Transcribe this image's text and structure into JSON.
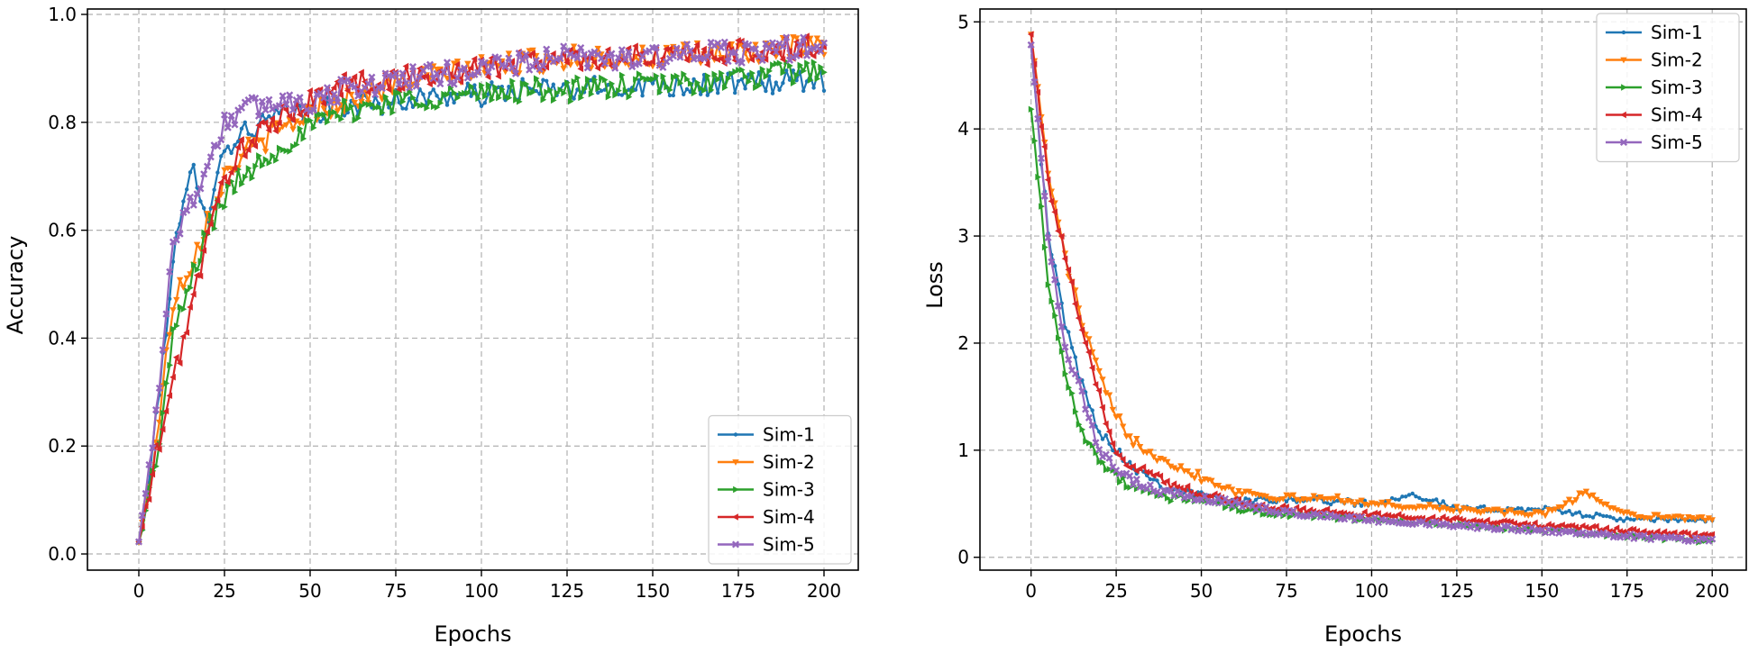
{
  "colors": {
    "Sim-1": "#1f77b4",
    "Sim-2": "#ff7f0e",
    "Sim-3": "#2ca02c",
    "Sim-4": "#d62728",
    "Sim-5": "#9467bd"
  },
  "chart_data": [
    {
      "id": "accuracy",
      "type": "line",
      "title": "",
      "xlabel": "Epochs",
      "ylabel": "Accuracy",
      "xlim": [
        -15,
        210
      ],
      "ylim": [
        -0.03,
        1.01
      ],
      "xticks": [
        0,
        25,
        50,
        75,
        100,
        125,
        150,
        175,
        200
      ],
      "yticks": [
        0.0,
        0.2,
        0.4,
        0.6,
        0.8,
        1.0
      ],
      "ytick_labels": [
        "0.0",
        "0.2",
        "0.4",
        "0.6",
        "0.8",
        "1.0"
      ],
      "grid": true,
      "legend_position": "lower-right",
      "legend": [
        "Sim-1",
        "Sim-2",
        "Sim-3",
        "Sim-4",
        "Sim-5"
      ],
      "series": [
        {
          "name": "Sim-1",
          "marker": "point",
          "x": [
            0,
            5,
            10,
            16,
            20,
            25,
            30,
            40,
            50,
            60,
            75,
            90,
            100,
            110,
            125,
            150,
            175,
            200
          ],
          "values": [
            0.02,
            0.24,
            0.55,
            0.72,
            0.63,
            0.75,
            0.78,
            0.81,
            0.82,
            0.83,
            0.84,
            0.85,
            0.85,
            0.86,
            0.86,
            0.87,
            0.87,
            0.88
          ]
        },
        {
          "name": "Sim-2",
          "marker": "triangle-down",
          "x": [
            0,
            5,
            10,
            16,
            20,
            25,
            30,
            40,
            50,
            60,
            75,
            90,
            100,
            110,
            125,
            150,
            175,
            200
          ],
          "values": [
            0.02,
            0.2,
            0.47,
            0.55,
            0.62,
            0.7,
            0.74,
            0.78,
            0.82,
            0.84,
            0.87,
            0.89,
            0.9,
            0.91,
            0.92,
            0.92,
            0.93,
            0.94
          ]
        },
        {
          "name": "Sim-3",
          "marker": "triangle-right",
          "x": [
            0,
            5,
            10,
            16,
            20,
            25,
            30,
            40,
            50,
            60,
            75,
            90,
            100,
            110,
            125,
            150,
            175,
            200
          ],
          "values": [
            0.02,
            0.17,
            0.4,
            0.52,
            0.6,
            0.66,
            0.7,
            0.75,
            0.79,
            0.82,
            0.84,
            0.85,
            0.85,
            0.86,
            0.86,
            0.87,
            0.88,
            0.9
          ]
        },
        {
          "name": "Sim-4",
          "marker": "triangle-left",
          "x": [
            0,
            5,
            10,
            16,
            20,
            25,
            30,
            40,
            50,
            60,
            75,
            90,
            100,
            110,
            125,
            150,
            175,
            200
          ],
          "values": [
            0.02,
            0.18,
            0.32,
            0.48,
            0.58,
            0.7,
            0.75,
            0.8,
            0.84,
            0.87,
            0.88,
            0.89,
            0.9,
            0.91,
            0.92,
            0.92,
            0.93,
            0.94
          ]
        },
        {
          "name": "Sim-5",
          "marker": "x",
          "x": [
            0,
            5,
            10,
            16,
            20,
            25,
            30,
            40,
            50,
            60,
            75,
            90,
            100,
            110,
            125,
            150,
            175,
            200
          ],
          "values": [
            0.02,
            0.26,
            0.58,
            0.66,
            0.72,
            0.8,
            0.82,
            0.84,
            0.84,
            0.86,
            0.88,
            0.89,
            0.9,
            0.91,
            0.92,
            0.92,
            0.93,
            0.94
          ]
        }
      ]
    },
    {
      "id": "loss",
      "type": "line",
      "title": "",
      "xlabel": "Epochs",
      "ylabel": "Loss",
      "xlim": [
        -15,
        210
      ],
      "ylim": [
        -0.12,
        5.12
      ],
      "xticks": [
        0,
        25,
        50,
        75,
        100,
        125,
        150,
        175,
        200
      ],
      "yticks": [
        0,
        1,
        2,
        3,
        4,
        5
      ],
      "ytick_labels": [
        "0",
        "1",
        "2",
        "3",
        "4",
        "5"
      ],
      "grid": true,
      "legend_position": "upper-right",
      "legend": [
        "Sim-1",
        "Sim-2",
        "Sim-3",
        "Sim-4",
        "Sim-5"
      ],
      "series": [
        {
          "name": "Sim-1",
          "marker": "point",
          "x": [
            0,
            5,
            10,
            15,
            20,
            25,
            30,
            40,
            50,
            60,
            75,
            100,
            112,
            125,
            150,
            175,
            200
          ],
          "values": [
            4.8,
            3.0,
            2.2,
            1.6,
            1.2,
            1.0,
            0.85,
            0.65,
            0.58,
            0.52,
            0.55,
            0.5,
            0.6,
            0.45,
            0.45,
            0.35,
            0.35
          ]
        },
        {
          "name": "Sim-2",
          "marker": "triangle-down",
          "x": [
            0,
            5,
            10,
            15,
            20,
            25,
            30,
            40,
            50,
            60,
            75,
            90,
            100,
            125,
            150,
            163,
            175,
            200
          ],
          "values": [
            4.9,
            3.6,
            2.8,
            2.2,
            1.7,
            1.3,
            1.1,
            0.9,
            0.75,
            0.62,
            0.55,
            0.55,
            0.5,
            0.45,
            0.4,
            0.6,
            0.4,
            0.35
          ]
        },
        {
          "name": "Sim-3",
          "marker": "triangle-right",
          "x": [
            0,
            5,
            10,
            15,
            20,
            25,
            30,
            40,
            50,
            60,
            75,
            100,
            125,
            150,
            175,
            200
          ],
          "values": [
            4.2,
            2.6,
            1.7,
            1.2,
            0.9,
            0.75,
            0.65,
            0.55,
            0.55,
            0.45,
            0.4,
            0.35,
            0.3,
            0.25,
            0.2,
            0.15
          ]
        },
        {
          "name": "Sim-4",
          "marker": "triangle-left",
          "x": [
            0,
            5,
            10,
            15,
            20,
            25,
            30,
            40,
            50,
            60,
            75,
            100,
            125,
            150,
            175,
            200
          ],
          "values": [
            4.9,
            3.5,
            2.8,
            2.1,
            1.5,
            1.0,
            0.85,
            0.7,
            0.6,
            0.52,
            0.45,
            0.4,
            0.35,
            0.3,
            0.25,
            0.2
          ]
        },
        {
          "name": "Sim-5",
          "marker": "x",
          "x": [
            0,
            5,
            10,
            15,
            20,
            25,
            30,
            40,
            50,
            60,
            75,
            100,
            125,
            150,
            175,
            200
          ],
          "values": [
            4.8,
            3.0,
            2.0,
            1.5,
            1.0,
            0.8,
            0.7,
            0.6,
            0.55,
            0.5,
            0.42,
            0.35,
            0.3,
            0.25,
            0.2,
            0.15
          ]
        }
      ]
    }
  ]
}
